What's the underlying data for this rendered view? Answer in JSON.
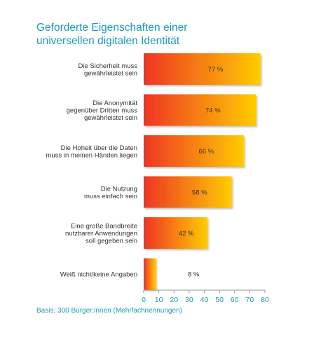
{
  "title": "Geforderte Eigenschaften einer\nuniversellen digitalen Identität",
  "footnote": "Basis: 300 Bürger:innen (Mehrfachnennungen)",
  "colors": {
    "bar_start": "#ee3524",
    "bar_end": "#ffcc00",
    "accent": "#1a9bb5"
  },
  "chart_data": {
    "type": "bar",
    "orientation": "horizontal",
    "categories": [
      [
        "Die Sicherheit muss",
        "gewährleistet sein"
      ],
      [
        "Die Anonymität",
        "gegenüber Dritten muss",
        "gewährleistet sein"
      ],
      [
        "Die Hoheit über die Daten",
        "muss in meinen Händen liegen"
      ],
      [
        "Die Nutzung",
        "muss einfach sein"
      ],
      [
        "Eine große Bandbreite",
        "nutzbarer Anwendungen",
        "soll gegeben sein"
      ],
      [
        "Weiß nicht/keine Angaben"
      ]
    ],
    "values": [
      77,
      74,
      66,
      58,
      42,
      8
    ],
    "value_labels": [
      "77 %",
      "74 %",
      "66 %",
      "58 %",
      "42 %",
      "8 %"
    ],
    "xlim": [
      0,
      80
    ],
    "xticks": [
      "0",
      "10",
      "20",
      "30",
      "40",
      "50",
      "60",
      "70",
      "80"
    ],
    "grid": false
  }
}
